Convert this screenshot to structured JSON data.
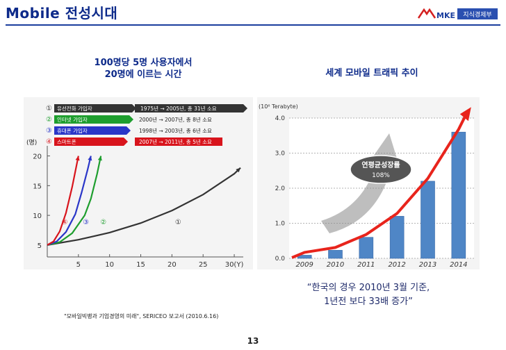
{
  "slide": {
    "title": "Mobile 전성시대",
    "page_number": "13",
    "logo_text": "지식경제부",
    "logo_mark": "MKE",
    "source": "\"모바일빅뱅과 기업경영의 미래\", SERICEO 보고서 (2010.6.16)",
    "quote_line1": "“한국의 경우 2010년 3월 기준,",
    "quote_line2": "1년전 보다 33배 증가”"
  },
  "left_panel": {
    "subtitle_line1": "100명당 5명 사용자에서",
    "subtitle_line2": "20명에 이르는 시간"
  },
  "right_panel": {
    "subtitle": "세계 모바일 트래픽 추이"
  },
  "colors": {
    "title": "#0d2a8a",
    "fixed_phone": "#333333",
    "internet": "#1e9e2e",
    "mobile_phone": "#2a36c8",
    "smartphone": "#d8141c",
    "bars": "#4f86c6",
    "trend": "#e8241c"
  },
  "chart_data": [
    {
      "type": "line",
      "ylabel": "(명)",
      "xlabel": "",
      "x_ticks": [
        "5",
        "10",
        "15",
        "20",
        "25",
        "30(Y)"
      ],
      "y_ticks": [
        "5",
        "10",
        "15",
        "20"
      ],
      "xlim": [
        0,
        31
      ],
      "ylim": [
        3,
        21
      ],
      "legend": [
        {
          "num": "①",
          "label": "유선전화 가입자",
          "period": "1975년 → 2005년, 총 31년 소요"
        },
        {
          "num": "②",
          "label": "인터넷 가입자",
          "period": "2000년 → 2007년, 총 8년 소요"
        },
        {
          "num": "③",
          "label": "휴대폰 가입자",
          "period": "1998년 → 2003년, 총 6년 소요"
        },
        {
          "num": "④",
          "label": "스마트폰",
          "period": "2007년 → 2011년, 총 5년 소요"
        }
      ],
      "series": [
        {
          "name": "유선전화 가입자",
          "tag": "①",
          "tag_x": 21,
          "tag_y": 8.5,
          "points": [
            [
              0,
              5
            ],
            [
              5,
              5.9
            ],
            [
              10,
              7.1
            ],
            [
              15,
              8.7
            ],
            [
              20,
              10.8
            ],
            [
              25,
              13.5
            ],
            [
              30,
              17.0
            ],
            [
              31,
              18.0
            ]
          ]
        },
        {
          "name": "인터넷 가입자",
          "tag": "②",
          "tag_x": 9,
          "tag_y": 8.5,
          "points": [
            [
              0,
              5
            ],
            [
              2,
              5.5
            ],
            [
              4,
              7.0
            ],
            [
              6,
              10.0
            ],
            [
              7,
              12.8
            ],
            [
              8,
              17.0
            ],
            [
              8.6,
              20.0
            ]
          ]
        },
        {
          "name": "휴대폰 가입자",
          "tag": "③",
          "tag_x": 6.2,
          "tag_y": 8.5,
          "points": [
            [
              0,
              5
            ],
            [
              1.5,
              5.6
            ],
            [
              3,
              7.2
            ],
            [
              4.5,
              10.2
            ],
            [
              5.5,
              13.8
            ],
            [
              6.5,
              17.8
            ],
            [
              7,
              20.0
            ]
          ]
        },
        {
          "name": "스마트폰",
          "tag": "④",
          "tag_x": 2.8,
          "tag_y": 8.5,
          "points": [
            [
              0,
              5
            ],
            [
              1,
              5.6
            ],
            [
              2,
              7.3
            ],
            [
              3,
              10.4
            ],
            [
              4,
              14.8
            ],
            [
              5,
              20.0
            ]
          ]
        }
      ]
    },
    {
      "type": "bar",
      "unit": "(10⁶ Terabyte)",
      "categories": [
        "2009",
        "2010",
        "2011",
        "2012",
        "2013",
        "2014"
      ],
      "values": [
        0.09,
        0.23,
        0.6,
        1.2,
        2.2,
        3.6
      ],
      "y_ticks": [
        "0.0",
        "1.0",
        "2.0",
        "3.0",
        "4.0"
      ],
      "ylim": [
        0,
        4
      ],
      "annotation_line1": "연평균성장률",
      "annotation_line2": "108%"
    }
  ]
}
